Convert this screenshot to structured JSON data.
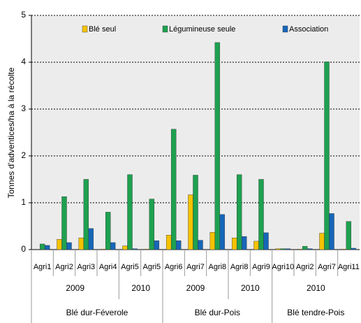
{
  "chart_data": {
    "type": "bar",
    "y_label": "Tonnes d'adventices/ha à la récolte",
    "ylim": [
      0,
      5
    ],
    "yticks": [
      0,
      1,
      2,
      3,
      4,
      5
    ],
    "grid": true,
    "legend": "top",
    "groups": [
      {
        "name": "Blé dur-Féverole",
        "years": [
          {
            "name": "2009",
            "categories": [
              "Agri1",
              "Agri2",
              "Agri3",
              "Agri4"
            ]
          },
          {
            "name": "2010",
            "categories": [
              "Agri5",
              "Agri5"
            ]
          }
        ]
      },
      {
        "name": "Blé dur-Pois",
        "years": [
          {
            "name": "2009",
            "categories": [
              "Agri6",
              "Agri7",
              "Agri8"
            ]
          },
          {
            "name": "2010",
            "categories": [
              "Agri8",
              "Agri9"
            ]
          }
        ]
      },
      {
        "name": "Blé tendre-Pois",
        "years": [
          {
            "name": "2010",
            "categories": [
              "Agri10",
              "Agri2",
              "Agri7",
              "Agri11"
            ]
          }
        ]
      }
    ],
    "series": [
      {
        "name": "Blé seul",
        "color": "#f5c200",
        "values": [
          0,
          0.22,
          0.25,
          0.01,
          0.08,
          0.01,
          0.31,
          1.17,
          0.37,
          0.25,
          0.18,
          0.02,
          0.01,
          0.35,
          0.01
        ]
      },
      {
        "name": "Légumineuse seule",
        "color": "#1ea150",
        "values": [
          0.12,
          1.13,
          1.5,
          0.8,
          1.6,
          1.08,
          2.57,
          1.59,
          4.42,
          1.6,
          1.5,
          0.02,
          0.07,
          4.01,
          0.6
        ]
      },
      {
        "name": "Association",
        "color": "#1766b8",
        "values": [
          0.09,
          0.15,
          0.45,
          0.15,
          0.02,
          0.19,
          0.19,
          0.2,
          0.75,
          0.28,
          0.36,
          0.02,
          0.02,
          0.77,
          0.03
        ]
      }
    ]
  }
}
